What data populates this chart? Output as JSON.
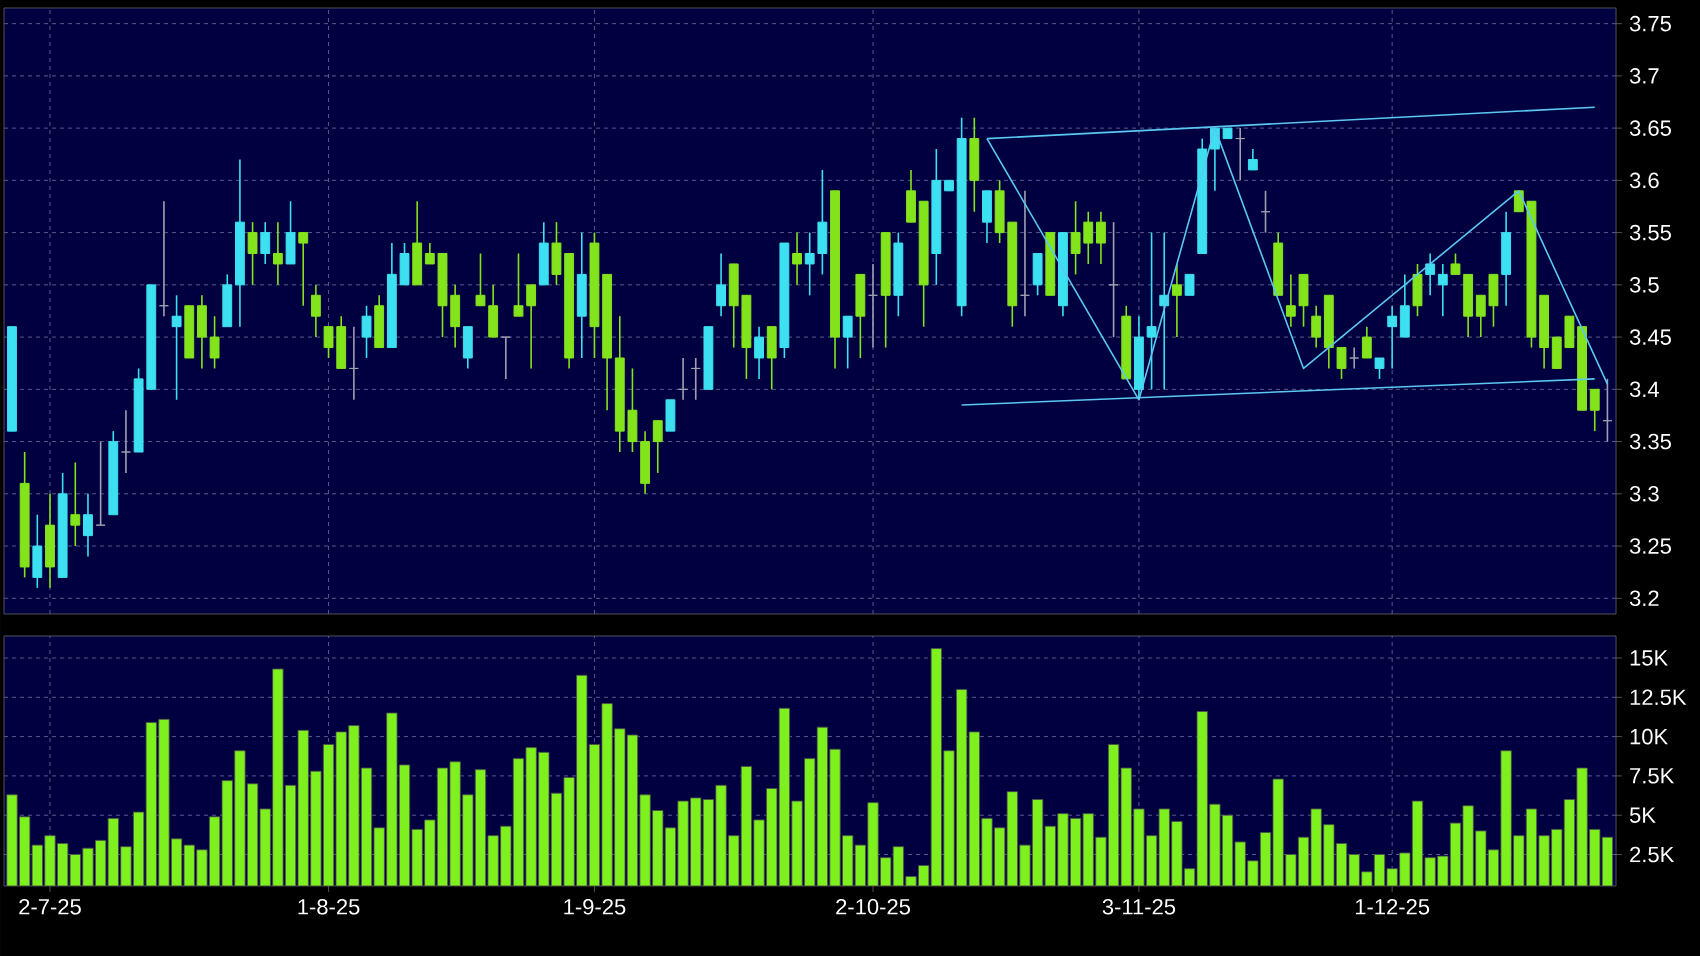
{
  "chart_data": [
    {
      "type": "candlestick",
      "categories": [
        null,
        null,
        null,
        null,
        null,
        null,
        null,
        null,
        null,
        null,
        null,
        null,
        null,
        null,
        null,
        null,
        null,
        null,
        null,
        null,
        null,
        null,
        null,
        null,
        null,
        null,
        null,
        null,
        null,
        null,
        null,
        null,
        null,
        null,
        null,
        null,
        null,
        null,
        null,
        null,
        null,
        null,
        null,
        null,
        null,
        null,
        null,
        null,
        null,
        null,
        null,
        null,
        null,
        null,
        null,
        null,
        null,
        null,
        null,
        null,
        null,
        null,
        null,
        null,
        null,
        null,
        null,
        null,
        null,
        null,
        null,
        null,
        null,
        null,
        null,
        null,
        null,
        null,
        null,
        null,
        null,
        null,
        null,
        null,
        null,
        null,
        null,
        null,
        null,
        null,
        null,
        null,
        null,
        null,
        null,
        null,
        null,
        null,
        null,
        null,
        null,
        null,
        null,
        null,
        null,
        null,
        null,
        null,
        null,
        null,
        null,
        null,
        null,
        null,
        null,
        null,
        null,
        null,
        null,
        null,
        null,
        null,
        null,
        null,
        null,
        null,
        null
      ],
      "ohlc": [
        [
          3.36,
          3.46,
          3.36,
          3.46
        ],
        [
          3.31,
          3.34,
          3.22,
          3.23
        ],
        [
          3.22,
          3.28,
          3.21,
          3.25
        ],
        [
          3.27,
          3.3,
          3.21,
          3.23
        ],
        [
          3.22,
          3.32,
          3.22,
          3.3
        ],
        [
          3.28,
          3.33,
          3.25,
          3.27
        ],
        [
          3.26,
          3.3,
          3.24,
          3.28
        ],
        [
          3.27,
          3.35,
          3.27,
          3.27
        ],
        [
          3.28,
          3.36,
          3.28,
          3.35
        ],
        [
          3.34,
          3.38,
          3.32,
          3.34
        ],
        [
          3.34,
          3.42,
          3.34,
          3.41
        ],
        [
          3.4,
          3.5,
          3.4,
          3.5
        ],
        [
          3.48,
          3.58,
          3.47,
          3.48
        ],
        [
          3.46,
          3.49,
          3.39,
          3.47
        ],
        [
          3.48,
          3.48,
          3.43,
          3.43
        ],
        [
          3.48,
          3.49,
          3.42,
          3.45
        ],
        [
          3.45,
          3.47,
          3.42,
          3.43
        ],
        [
          3.46,
          3.51,
          3.46,
          3.5
        ],
        [
          3.5,
          3.62,
          3.46,
          3.56
        ],
        [
          3.55,
          3.56,
          3.5,
          3.53
        ],
        [
          3.53,
          3.56,
          3.52,
          3.55
        ],
        [
          3.53,
          3.56,
          3.5,
          3.52
        ],
        [
          3.52,
          3.58,
          3.52,
          3.55
        ],
        [
          3.55,
          3.55,
          3.48,
          3.54
        ],
        [
          3.49,
          3.5,
          3.45,
          3.47
        ],
        [
          3.46,
          3.46,
          3.43,
          3.44
        ],
        [
          3.46,
          3.47,
          3.42,
          3.42
        ],
        [
          3.42,
          3.46,
          3.39,
          3.42
        ],
        [
          3.45,
          3.48,
          3.43,
          3.47
        ],
        [
          3.48,
          3.49,
          3.44,
          3.44
        ],
        [
          3.44,
          3.54,
          3.44,
          3.51
        ],
        [
          3.5,
          3.54,
          3.5,
          3.53
        ],
        [
          3.54,
          3.58,
          3.5,
          3.5
        ],
        [
          3.53,
          3.54,
          3.52,
          3.52
        ],
        [
          3.53,
          3.53,
          3.45,
          3.48
        ],
        [
          3.49,
          3.5,
          3.44,
          3.46
        ],
        [
          3.43,
          3.46,
          3.42,
          3.46
        ],
        [
          3.49,
          3.53,
          3.48,
          3.48
        ],
        [
          3.48,
          3.5,
          3.45,
          3.45
        ],
        [
          3.45,
          3.45,
          3.41,
          3.45
        ],
        [
          3.48,
          3.53,
          3.47,
          3.47
        ],
        [
          3.5,
          3.5,
          3.42,
          3.48
        ],
        [
          3.5,
          3.56,
          3.5,
          3.54
        ],
        [
          3.54,
          3.56,
          3.5,
          3.51
        ],
        [
          3.53,
          3.53,
          3.42,
          3.43
        ],
        [
          3.47,
          3.55,
          3.43,
          3.51
        ],
        [
          3.54,
          3.55,
          3.43,
          3.46
        ],
        [
          3.51,
          3.51,
          3.38,
          3.43
        ],
        [
          3.43,
          3.47,
          3.34,
          3.36
        ],
        [
          3.38,
          3.42,
          3.34,
          3.35
        ],
        [
          3.35,
          3.36,
          3.3,
          3.31
        ],
        [
          3.37,
          3.37,
          3.32,
          3.35
        ],
        [
          3.36,
          3.39,
          3.36,
          3.39
        ],
        [
          3.4,
          3.43,
          3.39,
          3.4
        ],
        [
          3.42,
          3.43,
          3.39,
          3.42
        ],
        [
          3.4,
          3.46,
          3.4,
          3.46
        ],
        [
          3.48,
          3.53,
          3.47,
          3.5
        ],
        [
          3.52,
          3.52,
          3.44,
          3.48
        ],
        [
          3.49,
          3.49,
          3.41,
          3.44
        ],
        [
          3.43,
          3.46,
          3.41,
          3.45
        ],
        [
          3.46,
          3.46,
          3.4,
          3.43
        ],
        [
          3.44,
          3.54,
          3.43,
          3.54
        ],
        [
          3.53,
          3.55,
          3.5,
          3.52
        ],
        [
          3.52,
          3.55,
          3.49,
          3.53
        ],
        [
          3.53,
          3.61,
          3.51,
          3.56
        ],
        [
          3.59,
          3.59,
          3.42,
          3.45
        ],
        [
          3.45,
          3.47,
          3.42,
          3.47
        ],
        [
          3.51,
          3.51,
          3.43,
          3.47
        ],
        [
          3.49,
          3.52,
          3.44,
          3.49
        ],
        [
          3.55,
          3.55,
          3.44,
          3.49
        ],
        [
          3.49,
          3.55,
          3.47,
          3.54
        ],
        [
          3.59,
          3.61,
          3.56,
          3.56
        ],
        [
          3.58,
          3.58,
          3.46,
          3.5
        ],
        [
          3.53,
          3.63,
          3.5,
          3.6
        ],
        [
          3.59,
          3.6,
          3.59,
          3.6
        ],
        [
          3.48,
          3.66,
          3.47,
          3.64
        ],
        [
          3.64,
          3.66,
          3.57,
          3.6
        ],
        [
          3.56,
          3.59,
          3.54,
          3.59
        ],
        [
          3.59,
          3.6,
          3.54,
          3.55
        ],
        [
          3.56,
          3.56,
          3.46,
          3.48
        ],
        [
          3.49,
          3.59,
          3.47,
          3.49
        ],
        [
          3.5,
          3.53,
          3.49,
          3.53
        ],
        [
          3.55,
          3.55,
          3.49,
          3.49
        ],
        [
          3.48,
          3.55,
          3.47,
          3.55
        ],
        [
          3.55,
          3.58,
          3.51,
          3.53
        ],
        [
          3.56,
          3.57,
          3.52,
          3.54
        ],
        [
          3.56,
          3.57,
          3.52,
          3.54
        ],
        [
          3.5,
          3.56,
          3.45,
          3.5
        ],
        [
          3.47,
          3.48,
          3.41,
          3.41
        ],
        [
          3.4,
          3.47,
          3.39,
          3.45
        ],
        [
          3.45,
          3.55,
          3.4,
          3.46
        ],
        [
          3.48,
          3.55,
          3.4,
          3.49
        ],
        [
          3.5,
          3.52,
          3.45,
          3.49
        ],
        [
          3.49,
          3.51,
          3.49,
          3.51
        ],
        [
          3.53,
          3.64,
          3.53,
          3.63
        ],
        [
          3.63,
          3.65,
          3.59,
          3.65
        ],
        [
          3.64,
          3.65,
          3.64,
          3.65
        ],
        [
          3.64,
          3.65,
          3.6,
          3.64
        ],
        [
          3.61,
          3.63,
          3.61,
          3.62
        ],
        [
          3.57,
          3.59,
          3.55,
          3.57
        ],
        [
          3.54,
          3.55,
          3.49,
          3.49
        ],
        [
          3.48,
          3.51,
          3.46,
          3.47
        ],
        [
          3.51,
          3.51,
          3.46,
          3.48
        ],
        [
          3.47,
          3.48,
          3.44,
          3.45
        ],
        [
          3.49,
          3.49,
          3.42,
          3.44
        ],
        [
          3.44,
          3.44,
          3.41,
          3.42
        ],
        [
          3.43,
          3.44,
          3.42,
          3.43
        ],
        [
          3.45,
          3.46,
          3.43,
          3.43
        ],
        [
          3.42,
          3.43,
          3.41,
          3.43
        ],
        [
          3.46,
          3.48,
          3.42,
          3.47
        ],
        [
          3.45,
          3.51,
          3.45,
          3.48
        ],
        [
          3.51,
          3.52,
          3.47,
          3.48
        ],
        [
          3.51,
          3.53,
          3.49,
          3.52
        ],
        [
          3.5,
          3.52,
          3.47,
          3.51
        ],
        [
          3.52,
          3.53,
          3.51,
          3.51
        ],
        [
          3.51,
          3.51,
          3.45,
          3.47
        ],
        [
          3.49,
          3.49,
          3.45,
          3.47
        ],
        [
          3.51,
          3.51,
          3.46,
          3.48
        ],
        [
          3.51,
          3.57,
          3.48,
          3.55
        ],
        [
          3.59,
          3.59,
          3.57,
          3.57
        ],
        [
          3.58,
          3.58,
          3.44,
          3.45
        ],
        [
          3.49,
          3.49,
          3.42,
          3.44
        ],
        [
          3.45,
          3.45,
          3.42,
          3.42
        ],
        [
          3.47,
          3.47,
          3.44,
          3.44
        ],
        [
          3.46,
          3.46,
          3.38,
          3.38
        ],
        [
          3.4,
          3.4,
          3.36,
          3.38
        ],
        [
          3.37,
          3.41,
          3.35,
          3.37
        ]
      ],
      "colors": [
        "#3ce0f0",
        "#84e41c",
        "#3ce0f0",
        "#84e41c",
        "#3ce0f0",
        "#84e41c",
        "#3ce0f0",
        "#a0a0b0",
        "#3ce0f0",
        "#a0a0b0",
        "#3ce0f0",
        "#3ce0f0",
        "#a0a0b0",
        "#3ce0f0",
        "#84e41c",
        "#84e41c",
        "#84e41c",
        "#3ce0f0",
        "#3ce0f0",
        "#84e41c",
        "#3ce0f0",
        "#84e41c",
        "#3ce0f0",
        "#84e41c",
        "#84e41c",
        "#84e41c",
        "#84e41c",
        "#a0a0b0",
        "#3ce0f0",
        "#84e41c",
        "#3ce0f0",
        "#3ce0f0",
        "#84e41c",
        "#84e41c",
        "#84e41c",
        "#84e41c",
        "#3ce0f0",
        "#84e41c",
        "#84e41c",
        "#a0a0b0",
        "#84e41c",
        "#84e41c",
        "#3ce0f0",
        "#84e41c",
        "#84e41c",
        "#3ce0f0",
        "#84e41c",
        "#84e41c",
        "#84e41c",
        "#84e41c",
        "#84e41c",
        "#84e41c",
        "#3ce0f0",
        "#a0a0b0",
        "#a0a0b0",
        "#3ce0f0",
        "#3ce0f0",
        "#84e41c",
        "#84e41c",
        "#3ce0f0",
        "#84e41c",
        "#3ce0f0",
        "#84e41c",
        "#3ce0f0",
        "#3ce0f0",
        "#84e41c",
        "#3ce0f0",
        "#84e41c",
        "#a0a0b0",
        "#84e41c",
        "#3ce0f0",
        "#84e41c",
        "#84e41c",
        "#3ce0f0",
        "#3ce0f0",
        "#3ce0f0",
        "#84e41c",
        "#3ce0f0",
        "#84e41c",
        "#84e41c",
        "#a0a0b0",
        "#3ce0f0",
        "#84e41c",
        "#3ce0f0",
        "#84e41c",
        "#84e41c",
        "#84e41c",
        "#a0a0b0",
        "#84e41c",
        "#3ce0f0",
        "#3ce0f0",
        "#3ce0f0",
        "#84e41c",
        "#3ce0f0",
        "#3ce0f0",
        "#3ce0f0",
        "#3ce0f0",
        "#a0a0b0",
        "#3ce0f0",
        "#a0a0b0",
        "#84e41c",
        "#84e41c",
        "#84e41c",
        "#84e41c",
        "#84e41c",
        "#84e41c",
        "#a0a0b0",
        "#84e41c",
        "#3ce0f0",
        "#3ce0f0",
        "#3ce0f0",
        "#84e41c",
        "#3ce0f0",
        "#3ce0f0",
        "#84e41c",
        "#84e41c",
        "#84e41c",
        "#84e41c",
        "#3ce0f0",
        "#84e41c",
        "#84e41c",
        "#84e41c",
        "#84e41c",
        "#84e41c",
        "#84e41c",
        "#84e41c",
        "#a0a0b0"
      ],
      "series": [
        {
          "type": "line",
          "color": "#5ac8f0",
          "values": [
            null,
            null,
            null,
            null,
            null,
            null,
            null,
            null,
            null,
            null,
            null,
            null,
            null,
            null,
            null,
            null,
            null,
            null,
            null,
            null,
            null,
            null,
            null,
            null,
            null,
            null,
            null,
            null,
            null,
            null,
            null,
            null,
            null,
            null,
            null,
            null,
            null,
            null,
            null,
            null,
            null,
            null,
            null,
            null,
            null,
            null,
            null,
            null,
            null,
            null,
            null,
            null,
            null,
            null,
            null,
            null,
            null,
            null,
            null,
            null,
            null,
            null,
            null,
            null,
            null,
            null,
            null,
            null,
            null,
            null,
            null,
            null,
            null,
            null,
            null,
            null,
            null,
            3.64,
            null,
            null,
            null,
            null,
            null,
            null,
            null,
            null,
            null,
            null,
            null,
            null,
            null,
            null,
            null,
            null,
            null,
            null,
            null,
            null,
            null,
            null,
            null,
            null,
            null,
            null,
            null,
            null,
            null,
            null,
            null,
            null,
            null,
            null,
            null,
            null,
            null,
            null,
            null,
            null,
            null,
            null,
            null,
            null,
            null,
            null,
            null,
            3.67,
            null
          ]
        },
        {
          "type": "line",
          "color": "#5ac8f0",
          "values": [
            null,
            null,
            null,
            null,
            null,
            null,
            null,
            null,
            null,
            null,
            null,
            null,
            null,
            null,
            null,
            null,
            null,
            null,
            null,
            null,
            null,
            null,
            null,
            null,
            null,
            null,
            null,
            null,
            null,
            null,
            null,
            null,
            null,
            null,
            null,
            null,
            null,
            null,
            null,
            null,
            null,
            null,
            null,
            null,
            null,
            null,
            null,
            null,
            null,
            null,
            null,
            null,
            null,
            null,
            null,
            null,
            null,
            null,
            null,
            null,
            null,
            null,
            null,
            null,
            null,
            null,
            null,
            null,
            null,
            null,
            null,
            null,
            null,
            null,
            null,
            3.385,
            null,
            null,
            null,
            null,
            null,
            null,
            null,
            null,
            null,
            null,
            null,
            null,
            null,
            null,
            null,
            null,
            null,
            null,
            null,
            null,
            null,
            null,
            null,
            null,
            null,
            null,
            null,
            null,
            null,
            null,
            null,
            null,
            null,
            null,
            null,
            null,
            null,
            null,
            null,
            null,
            null,
            null,
            null,
            null,
            null,
            null,
            null,
            null,
            null,
            3.41,
            null
          ]
        },
        {
          "type": "line",
          "color": "#5ac8f0",
          "values": [
            null,
            null,
            null,
            null,
            null,
            null,
            null,
            null,
            null,
            null,
            null,
            null,
            null,
            null,
            null,
            null,
            null,
            null,
            null,
            null,
            null,
            null,
            null,
            null,
            null,
            null,
            null,
            null,
            null,
            null,
            null,
            null,
            null,
            null,
            null,
            null,
            null,
            null,
            null,
            null,
            null,
            null,
            null,
            null,
            null,
            null,
            null,
            null,
            null,
            null,
            null,
            null,
            null,
            null,
            null,
            null,
            null,
            null,
            null,
            null,
            null,
            null,
            null,
            null,
            null,
            null,
            null,
            null,
            null,
            null,
            null,
            null,
            null,
            null,
            null,
            null,
            null,
            3.64,
            null,
            null,
            null,
            null,
            null,
            null,
            null,
            null,
            null,
            null,
            null,
            3.39,
            null,
            null,
            null,
            null,
            null,
            3.65,
            null,
            null,
            null,
            null,
            null,
            null,
            3.42,
            null,
            null,
            null,
            null,
            null,
            null,
            null,
            null,
            null,
            null,
            null,
            null,
            null,
            null,
            null,
            null,
            3.59,
            null,
            null,
            null,
            null,
            null,
            null,
            3.405
          ]
        }
      ],
      "ylim": [
        3.185,
        3.765
      ],
      "yticks": [
        3.2,
        3.25,
        3.3,
        3.35,
        3.4,
        3.45,
        3.5,
        3.55,
        3.6,
        3.65,
        3.7,
        3.75
      ],
      "grid": true
    },
    {
      "type": "bar",
      "categories": [
        null,
        null,
        null,
        "2-7-25",
        null,
        null,
        null,
        null,
        null,
        null,
        null,
        null,
        null,
        null,
        null,
        null,
        null,
        null,
        null,
        null,
        null,
        null,
        null,
        null,
        null,
        "1-8-25",
        null,
        null,
        null,
        null,
        null,
        null,
        null,
        null,
        null,
        null,
        null,
        null,
        null,
        null,
        null,
        null,
        null,
        null,
        null,
        null,
        "1-9-25",
        null,
        null,
        null,
        null,
        null,
        null,
        null,
        null,
        null,
        null,
        null,
        null,
        null,
        null,
        null,
        null,
        null,
        null,
        null,
        null,
        null,
        "2-10-25",
        null,
        null,
        null,
        null,
        null,
        null,
        null,
        null,
        null,
        null,
        null,
        null,
        null,
        null,
        null,
        null,
        null,
        null,
        null,
        null,
        "3-11-25",
        null,
        null,
        null,
        null,
        null,
        null,
        null,
        null,
        null,
        null,
        null,
        null,
        null,
        null,
        null,
        null,
        null,
        null,
        null,
        "1-12-25",
        null,
        null,
        null,
        null,
        null,
        null,
        null,
        null,
        null,
        null,
        null,
        null,
        null,
        null,
        null,
        null,
        null
      ],
      "values": [
        6300,
        4900,
        3100,
        3700,
        3200,
        2500,
        2900,
        3400,
        4800,
        3000,
        5200,
        10900,
        11100,
        3500,
        3100,
        2800,
        4900,
        7200,
        9100,
        7000,
        5400,
        14300,
        6900,
        10400,
        7800,
        9500,
        10300,
        10700,
        8000,
        4200,
        11500,
        8200,
        4100,
        4700,
        8000,
        8400,
        6300,
        7900,
        3700,
        4300,
        8600,
        9300,
        9000,
        6400,
        7400,
        13900,
        9500,
        12100,
        10500,
        10100,
        6300,
        5300,
        4200,
        5900,
        6100,
        6000,
        6900,
        3700,
        8100,
        4700,
        6700,
        11800,
        5900,
        8600,
        10600,
        9200,
        3700,
        3100,
        5800,
        2300,
        3000,
        1100,
        1800,
        15600,
        9100,
        13000,
        10300,
        4800,
        4200,
        6500,
        3100,
        6000,
        4300,
        5100,
        4800,
        5100,
        3600,
        9500,
        8000,
        5400,
        3700,
        5400,
        4600,
        1600,
        11600,
        5700,
        5000,
        3300,
        2100,
        3900,
        7300,
        2500,
        3600,
        5400,
        4400,
        3200,
        2500,
        1400,
        2500,
        1600,
        2600,
        5900,
        2300,
        2400,
        4500,
        5600,
        4000,
        2800,
        9100,
        3700,
        5400,
        3700,
        4100,
        6000,
        8000,
        4100,
        3600
      ],
      "color": "#7ef01e",
      "ylim": [
        500,
        16400
      ],
      "yticks": [
        {
          "value": 2500,
          "label": "2.5K"
        },
        {
          "value": 5000,
          "label": "5K"
        },
        {
          "value": 7500,
          "label": "7.5K"
        },
        {
          "value": 10000,
          "label": "10K"
        },
        {
          "value": 12500,
          "label": "12.5K"
        },
        {
          "value": 15000,
          "label": "15K"
        }
      ],
      "grid": true
    }
  ]
}
